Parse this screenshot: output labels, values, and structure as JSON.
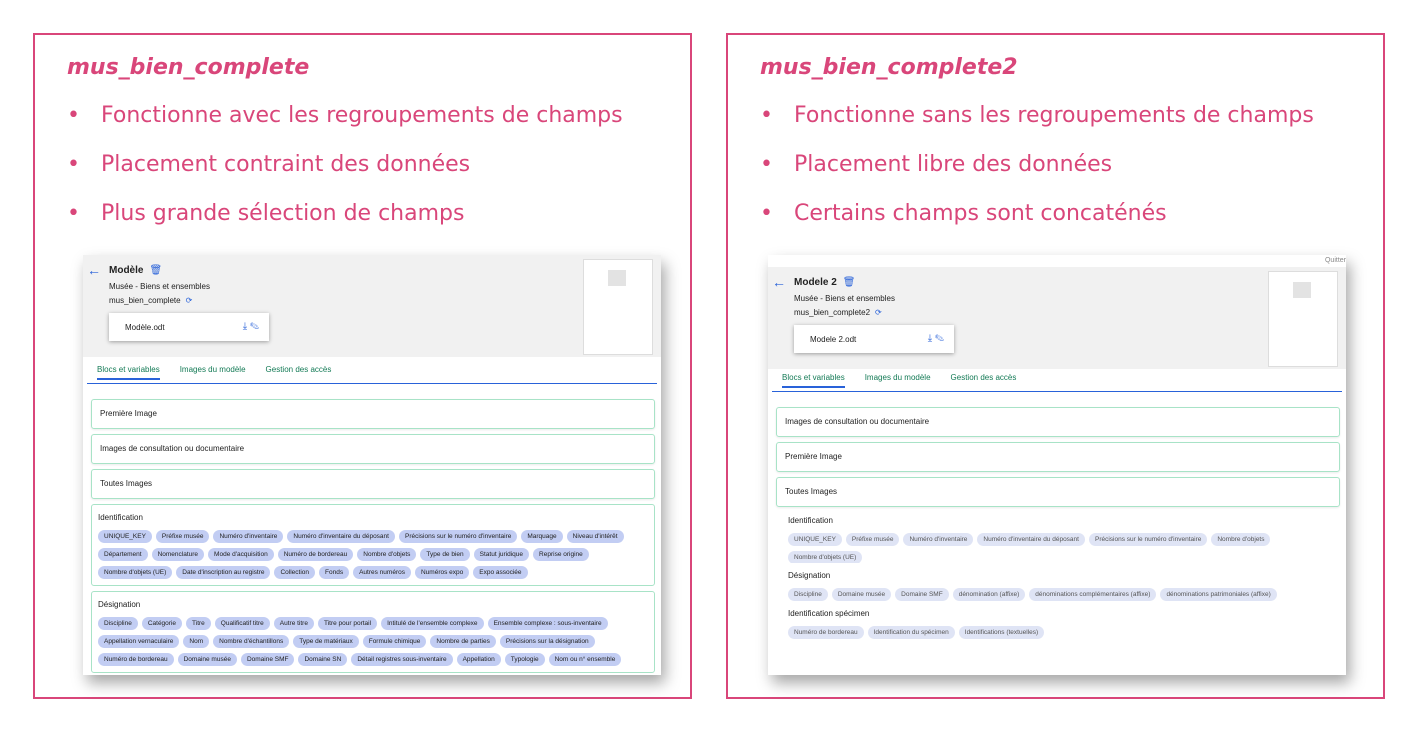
{
  "panels": [
    {
      "title": "mus_bien_complete",
      "bullets": [
        "Fonctionne avec les regroupements de champs",
        "Placement contraint des données",
        "Plus grande sélection de champs"
      ],
      "screen": {
        "top_actions": [],
        "header": {
          "title": "Modèle",
          "subtitle": "Musée - Biens et ensembles",
          "model": "mus_bien_complete",
          "file": "Modèle.odt"
        },
        "tabs": [
          "Blocs et variables",
          "Images du modèle",
          "Gestion des accès"
        ],
        "blocks": [
          "Première Image",
          "Images de consultation ou documentaire",
          "Toutes Images"
        ],
        "groups": [
          {
            "label": "Identification",
            "chips": [
              "UNIQUE_KEY",
              "Préfixe musée",
              "Numéro d'inventaire",
              "Numéro d'inventaire du déposant",
              "Précisions sur le numéro d'inventaire",
              "Marquage",
              "Niveau d'intérêt",
              "Département",
              "Nomenclature",
              "Mode d'acquisition",
              "Numéro de bordereau",
              "Nombre d'objets",
              "Type de bien",
              "Statut juridique",
              "Reprise origine",
              "Nombre d'objets (UE)",
              "Date d'inscription au registre",
              "Collection",
              "Fonds",
              "Autres numéros",
              "Numéros expo",
              "Expo associée"
            ]
          },
          {
            "label": "Désignation",
            "chips": [
              "Discipline",
              "Catégorie",
              "Titre",
              "Qualificatif titre",
              "Autre titre",
              "Titre pour portail",
              "Intitulé de l'ensemble complexe",
              "Ensemble complexe : sous-inventaire",
              "Appellation vernaculaire",
              "Nom",
              "Nombre d'échantillons",
              "Type de matériaux",
              "Formule chimique",
              "Nombre de parties",
              "Précisions sur la désignation",
              "Numéro de bordereau",
              "Domaine musée",
              "Domaine SMF",
              "Domaine SN",
              "Détail registres sous-inventaire",
              "Appellation",
              "Typologie",
              "Nom ou n° ensemble"
            ]
          }
        ]
      }
    },
    {
      "title": "mus_bien_complete2",
      "bullets": [
        "Fonctionne sans les regroupements de champs",
        "Placement libre des données",
        "Certains champs sont concaténés"
      ],
      "screen": {
        "top_actions": [
          "Quitter"
        ],
        "header": {
          "title": "Modele 2",
          "subtitle": "Musée - Biens et ensembles",
          "model": "mus_bien_complete2",
          "file": "Modele 2.odt"
        },
        "tabs": [
          "Blocs et variables",
          "Images du modèle",
          "Gestion des accès"
        ],
        "blocks": [
          "Images de consultation ou documentaire",
          "Première Image",
          "Toutes Images"
        ],
        "groups": [
          {
            "label": "Identification",
            "chips": [
              "UNIQUE_KEY",
              "Préfixe musée",
              "Numéro d'inventaire",
              "Numéro d'inventaire du déposant",
              "Précisions sur le numéro d'inventaire",
              "Nombre d'objets",
              "Nombre d'objets (UE)"
            ]
          },
          {
            "label": "Désignation",
            "chips": [
              "Discipline",
              "Domaine musée",
              "Domaine SMF",
              "dénomination (affixe)",
              "dénominations complémentaires (affixe)",
              "dénominations patrimoniales (affixe)"
            ]
          },
          {
            "label": "Identification spécimen",
            "chips": [
              "Numéro de bordereau",
              "Identification du spécimen",
              "Identifications (textuelles)"
            ]
          }
        ]
      }
    }
  ]
}
